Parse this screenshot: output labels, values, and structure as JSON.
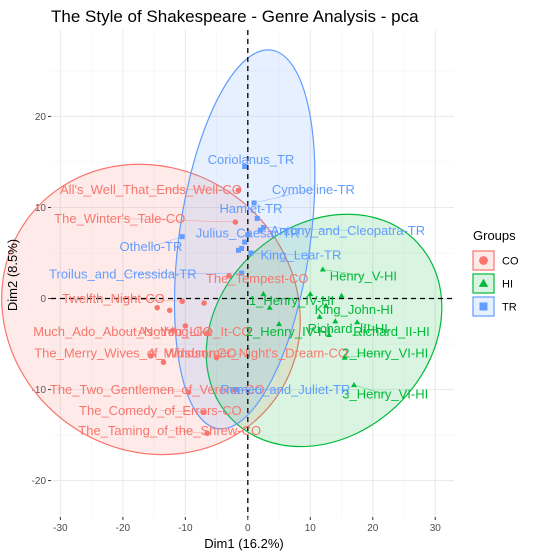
{
  "chart_data": {
    "type": "scatter",
    "title": "The Style of Shakespeare - Genre Analysis - pca",
    "xlabel": "Dim1 (16.2%)",
    "ylabel": "Dim2 (8.5%)",
    "xlim": [
      -31.5,
      33
    ],
    "ylim": [
      -24,
      29.5
    ],
    "xticks": [
      -30,
      -20,
      -10,
      0,
      10,
      20,
      30
    ],
    "yticks": [
      -20,
      -10,
      0,
      10,
      20
    ],
    "grid": true,
    "legend": {
      "title": "Groups",
      "position": "right"
    },
    "groups": [
      {
        "key": "CO",
        "color": "#F8766D",
        "shape": "circle"
      },
      {
        "key": "HI",
        "color": "#00BA38",
        "shape": "triangle"
      },
      {
        "key": "TR",
        "color": "#619CFF",
        "shape": "square"
      }
    ],
    "ellipses": [
      {
        "group": "CO",
        "cx": -15.5,
        "cy": -1.2,
        "rx": 24.5,
        "ry": 15.5,
        "angle_deg": 35
      },
      {
        "group": "HI",
        "cx": 12.2,
        "cy": -3.5,
        "rx": 20.5,
        "ry": 11.5,
        "angle_deg": -43
      },
      {
        "group": "TR",
        "cx": -0.5,
        "cy": 6.5,
        "rx": 10.5,
        "ry": 21,
        "angle_deg": 8
      }
    ],
    "points": [
      {
        "label": "All's_Well_That_Ends_Well-CO",
        "group": "CO",
        "x": -1.5,
        "y": 11.9,
        "lx": -15.5,
        "ly": 12.0
      },
      {
        "label": "The_Winter's_Tale-CO",
        "group": "CO",
        "x": -2.0,
        "y": 8.4,
        "lx": -20.5,
        "ly": 8.8
      },
      {
        "label": "Twelfth_Night-CO",
        "group": "CO",
        "x": -10.5,
        "y": -0.3,
        "lx": -21.5,
        "ly": 0.0
      },
      {
        "label": "Much_Ado_About_Nothing-CO",
        "group": "CO",
        "x": -12.0,
        "y": -3.5,
        "lx": -20.0,
        "ly": -3.6
      },
      {
        "label": "As_You_Like_It-CO",
        "group": "CO",
        "x": -6.5,
        "y": -3.8,
        "lx": -8.5,
        "ly": -3.6
      },
      {
        "label": "The_Merry_Wives_of_Windsor-CO",
        "group": "CO",
        "x": -15.5,
        "y": -6.3,
        "lx": -18.0,
        "ly": -6.0
      },
      {
        "label": "A_Midsummer_Night's_Dream-CO",
        "group": "CO",
        "x": -5.0,
        "y": -6.5,
        "lx": 0.0,
        "ly": -6.0
      },
      {
        "label": "The_Two_Gentlemen_of_Verona-CO",
        "group": "CO",
        "x": -9.5,
        "y": -10.3,
        "lx": -14.5,
        "ly": -10.0
      },
      {
        "label": "The_Comedy_of_Errors-CO",
        "group": "CO",
        "x": -7.0,
        "y": -12.5,
        "lx": -14.0,
        "ly": -12.3
      },
      {
        "label": "The_Taming_of_the_Shrew-CO",
        "group": "CO",
        "x": -6.5,
        "y": -14.8,
        "lx": -12.5,
        "ly": -14.5
      },
      {
        "label": "The_Tempest-CO",
        "group": "CO",
        "x": -3.0,
        "y": 2.5,
        "lx": 1.5,
        "ly": 2.2
      },
      {
        "label": "Henry_V-HI",
        "group": "HI",
        "x": 12.0,
        "y": 3.2,
        "lx": 18.5,
        "ly": 2.5
      },
      {
        "label": "1_Henry_IV-HI",
        "group": "HI",
        "x": 2.5,
        "y": 0.5,
        "lx": 7.0,
        "ly": -0.2
      },
      {
        "label": "King_John-HI",
        "group": "HI",
        "x": 12.5,
        "y": -0.8,
        "lx": 17.0,
        "ly": -1.2
      },
      {
        "label": "2_Henry_IV-HI",
        "group": "HI",
        "x": 5.0,
        "y": -2.8,
        "lx": 6.5,
        "ly": -3.6
      },
      {
        "label": "Richard_III-HI",
        "group": "HI",
        "x": 14.0,
        "y": -2.5,
        "lx": 16.0,
        "ly": -3.3
      },
      {
        "label": "Richard_II-HI",
        "group": "HI",
        "x": 17.5,
        "y": -2.6,
        "lx": 23.0,
        "ly": -3.6
      },
      {
        "label": "2_Henry_VI-HI",
        "group": "HI",
        "x": 15.5,
        "y": -6.5,
        "lx": 22.0,
        "ly": -6.0
      },
      {
        "label": "3_Henry_VI-HI",
        "group": "HI",
        "x": 17.0,
        "y": -9.5,
        "lx": 22.0,
        "ly": -10.5
      },
      {
        "label": "Coriolanus_TR",
        "group": "TR",
        "x": -0.5,
        "y": 14.5,
        "lx": 0.5,
        "ly": 15.3
      },
      {
        "label": "Cymbeline-TR",
        "group": "TR",
        "x": 1.0,
        "y": 10.5,
        "lx": 10.5,
        "ly": 12.0
      },
      {
        "label": "Hamlet-TR",
        "group": "TR",
        "x": 1.5,
        "y": 8.8,
        "lx": 0.5,
        "ly": 9.9
      },
      {
        "label": "Julius_Caesar-TR",
        "group": "TR",
        "x": 0.0,
        "y": 7.0,
        "lx": 0.0,
        "ly": 7.2
      },
      {
        "label": "Antony_and_Cleopatra-TR",
        "group": "TR",
        "x": 2.5,
        "y": 7.8,
        "lx": 16.0,
        "ly": 7.5
      },
      {
        "label": "Othello-TR",
        "group": "TR",
        "x": -10.5,
        "y": 6.8,
        "lx": -15.5,
        "ly": 5.7
      },
      {
        "label": "King_Lear-TR",
        "group": "TR",
        "x": 0.5,
        "y": 5.0,
        "lx": 8.5,
        "ly": 4.8
      },
      {
        "label": "Troilus_and_Cressida-TR",
        "group": "TR",
        "x": -1.0,
        "y": 2.8,
        "lx": -20.0,
        "ly": 2.7
      },
      {
        "label": "Romeo_and_Juliet-TR",
        "group": "TR",
        "x": -2.0,
        "y": -10.0,
        "lx": 6.0,
        "ly": -10.0
      },
      {
        "label": "",
        "group": "TR",
        "x": -1.0,
        "y": 5.5
      },
      {
        "label": "",
        "group": "TR",
        "x": -1.5,
        "y": 5.3
      },
      {
        "label": "",
        "group": "TR",
        "x": 2.0,
        "y": 7.5
      },
      {
        "label": "",
        "group": "TR",
        "x": -0.5,
        "y": 6.2
      },
      {
        "label": "",
        "group": "CO",
        "x": -14.5,
        "y": -1.0
      },
      {
        "label": "",
        "group": "CO",
        "x": -12.5,
        "y": -1.3
      },
      {
        "label": "",
        "group": "CO",
        "x": -7.0,
        "y": -0.5
      },
      {
        "label": "",
        "group": "CO",
        "x": -10.0,
        "y": -3.0
      },
      {
        "label": "",
        "group": "CO",
        "x": -13.5,
        "y": -7.0
      },
      {
        "label": "",
        "group": "HI",
        "x": 3.5,
        "y": -1.0
      },
      {
        "label": "",
        "group": "HI",
        "x": 10.0,
        "y": 0.5
      },
      {
        "label": "",
        "group": "HI",
        "x": 11.5,
        "y": -2.0
      },
      {
        "label": "",
        "group": "HI",
        "x": 13.0,
        "y": -4.0
      },
      {
        "label": "",
        "group": "HI",
        "x": 15.0,
        "y": 0.3
      }
    ]
  }
}
